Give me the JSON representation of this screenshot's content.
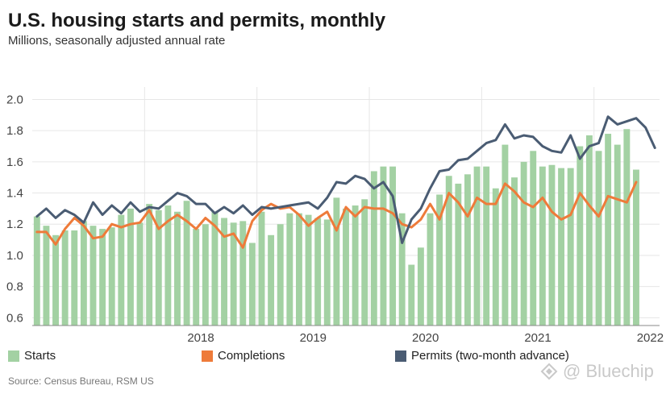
{
  "title": "U.S. housing starts and permits, monthly",
  "subtitle": "Millions, seasonally adjusted annual rate",
  "source": "Source: Census Bureau, RSM US",
  "watermark": "@ Bluechip",
  "colors": {
    "starts": "#a3d1a3",
    "completions": "#ee7b3a",
    "permits": "#4a5c73",
    "grid": "#e6e6e6"
  },
  "legend": [
    {
      "label": "Starts",
      "series": "starts"
    },
    {
      "label": "Completions",
      "series": "completions"
    },
    {
      "label": "Permits (two-month advance)",
      "series": "permits"
    }
  ],
  "chart_data": {
    "type": "bar+line",
    "ylim": [
      0.55,
      2.08
    ],
    "yticks": [
      0.6,
      0.8,
      1.0,
      1.2,
      1.4,
      1.6,
      1.8,
      2.0
    ],
    "ytick_labels": [
      "0.6",
      "0.8",
      "1.0",
      "1.2",
      "1.4",
      "1.6",
      "1.8",
      "2.0"
    ],
    "x_start": "2017-01",
    "x_months": 67,
    "xtick_labels": [
      {
        "label": "2018",
        "month": "2018-01"
      },
      {
        "label": "2019",
        "month": "2019-01"
      },
      {
        "label": "2020",
        "month": "2020-01"
      },
      {
        "label": "2021",
        "month": "2021-01"
      },
      {
        "label": "2022",
        "month": "2022-01"
      }
    ],
    "series": [
      {
        "name": "Starts",
        "key": "starts",
        "type": "bar",
        "values": [
          1.25,
          1.19,
          1.13,
          1.16,
          1.16,
          1.22,
          1.19,
          1.17,
          1.18,
          1.26,
          1.3,
          1.21,
          1.33,
          1.29,
          1.32,
          1.28,
          1.35,
          1.17,
          1.2,
          1.28,
          1.24,
          1.21,
          1.22,
          1.08,
          1.28,
          1.13,
          1.2,
          1.27,
          1.27,
          1.26,
          1.24,
          1.23,
          1.37,
          1.3,
          1.32,
          1.36,
          1.54,
          1.57,
          1.57,
          1.27,
          0.94,
          1.05,
          1.27,
          1.39,
          1.51,
          1.46,
          1.52,
          1.57,
          1.57,
          1.43,
          1.71,
          1.5,
          1.6,
          1.67,
          1.57,
          1.58,
          1.56,
          1.56,
          1.7,
          1.77,
          1.67,
          1.78,
          1.71,
          1.81,
          1.55
        ]
      },
      {
        "name": "Completions",
        "key": "completions",
        "type": "line",
        "values": [
          1.15,
          1.15,
          1.07,
          1.17,
          1.24,
          1.19,
          1.11,
          1.12,
          1.2,
          1.18,
          1.2,
          1.21,
          1.29,
          1.17,
          1.22,
          1.26,
          1.22,
          1.17,
          1.24,
          1.19,
          1.12,
          1.14,
          1.05,
          1.22,
          1.29,
          1.33,
          1.3,
          1.31,
          1.26,
          1.19,
          1.24,
          1.28,
          1.16,
          1.31,
          1.25,
          1.31,
          1.3,
          1.3,
          1.27,
          1.2,
          1.18,
          1.23,
          1.33,
          1.23,
          1.4,
          1.34,
          1.25,
          1.37,
          1.33,
          1.33,
          1.46,
          1.41,
          1.34,
          1.31,
          1.37,
          1.28,
          1.23,
          1.26,
          1.4,
          1.32,
          1.25,
          1.38,
          1.36,
          1.34,
          1.47
        ]
      },
      {
        "name": "Permits (two-month advance)",
        "key": "permits",
        "type": "line",
        "values": [
          1.25,
          1.3,
          1.24,
          1.29,
          1.26,
          1.21,
          1.34,
          1.26,
          1.32,
          1.27,
          1.34,
          1.28,
          1.31,
          1.3,
          1.35,
          1.4,
          1.38,
          1.33,
          1.33,
          1.27,
          1.31,
          1.27,
          1.32,
          1.26,
          1.31,
          1.3,
          1.31,
          1.32,
          1.33,
          1.34,
          1.3,
          1.37,
          1.47,
          1.46,
          1.51,
          1.49,
          1.43,
          1.47,
          1.38,
          1.08,
          1.23,
          1.3,
          1.43,
          1.54,
          1.55,
          1.61,
          1.62,
          1.67,
          1.72,
          1.74,
          1.84,
          1.75,
          1.77,
          1.76,
          1.7,
          1.67,
          1.66,
          1.77,
          1.62,
          1.7,
          1.72,
          1.89,
          1.84,
          1.86,
          1.88,
          1.82,
          1.69
        ]
      }
    ]
  }
}
